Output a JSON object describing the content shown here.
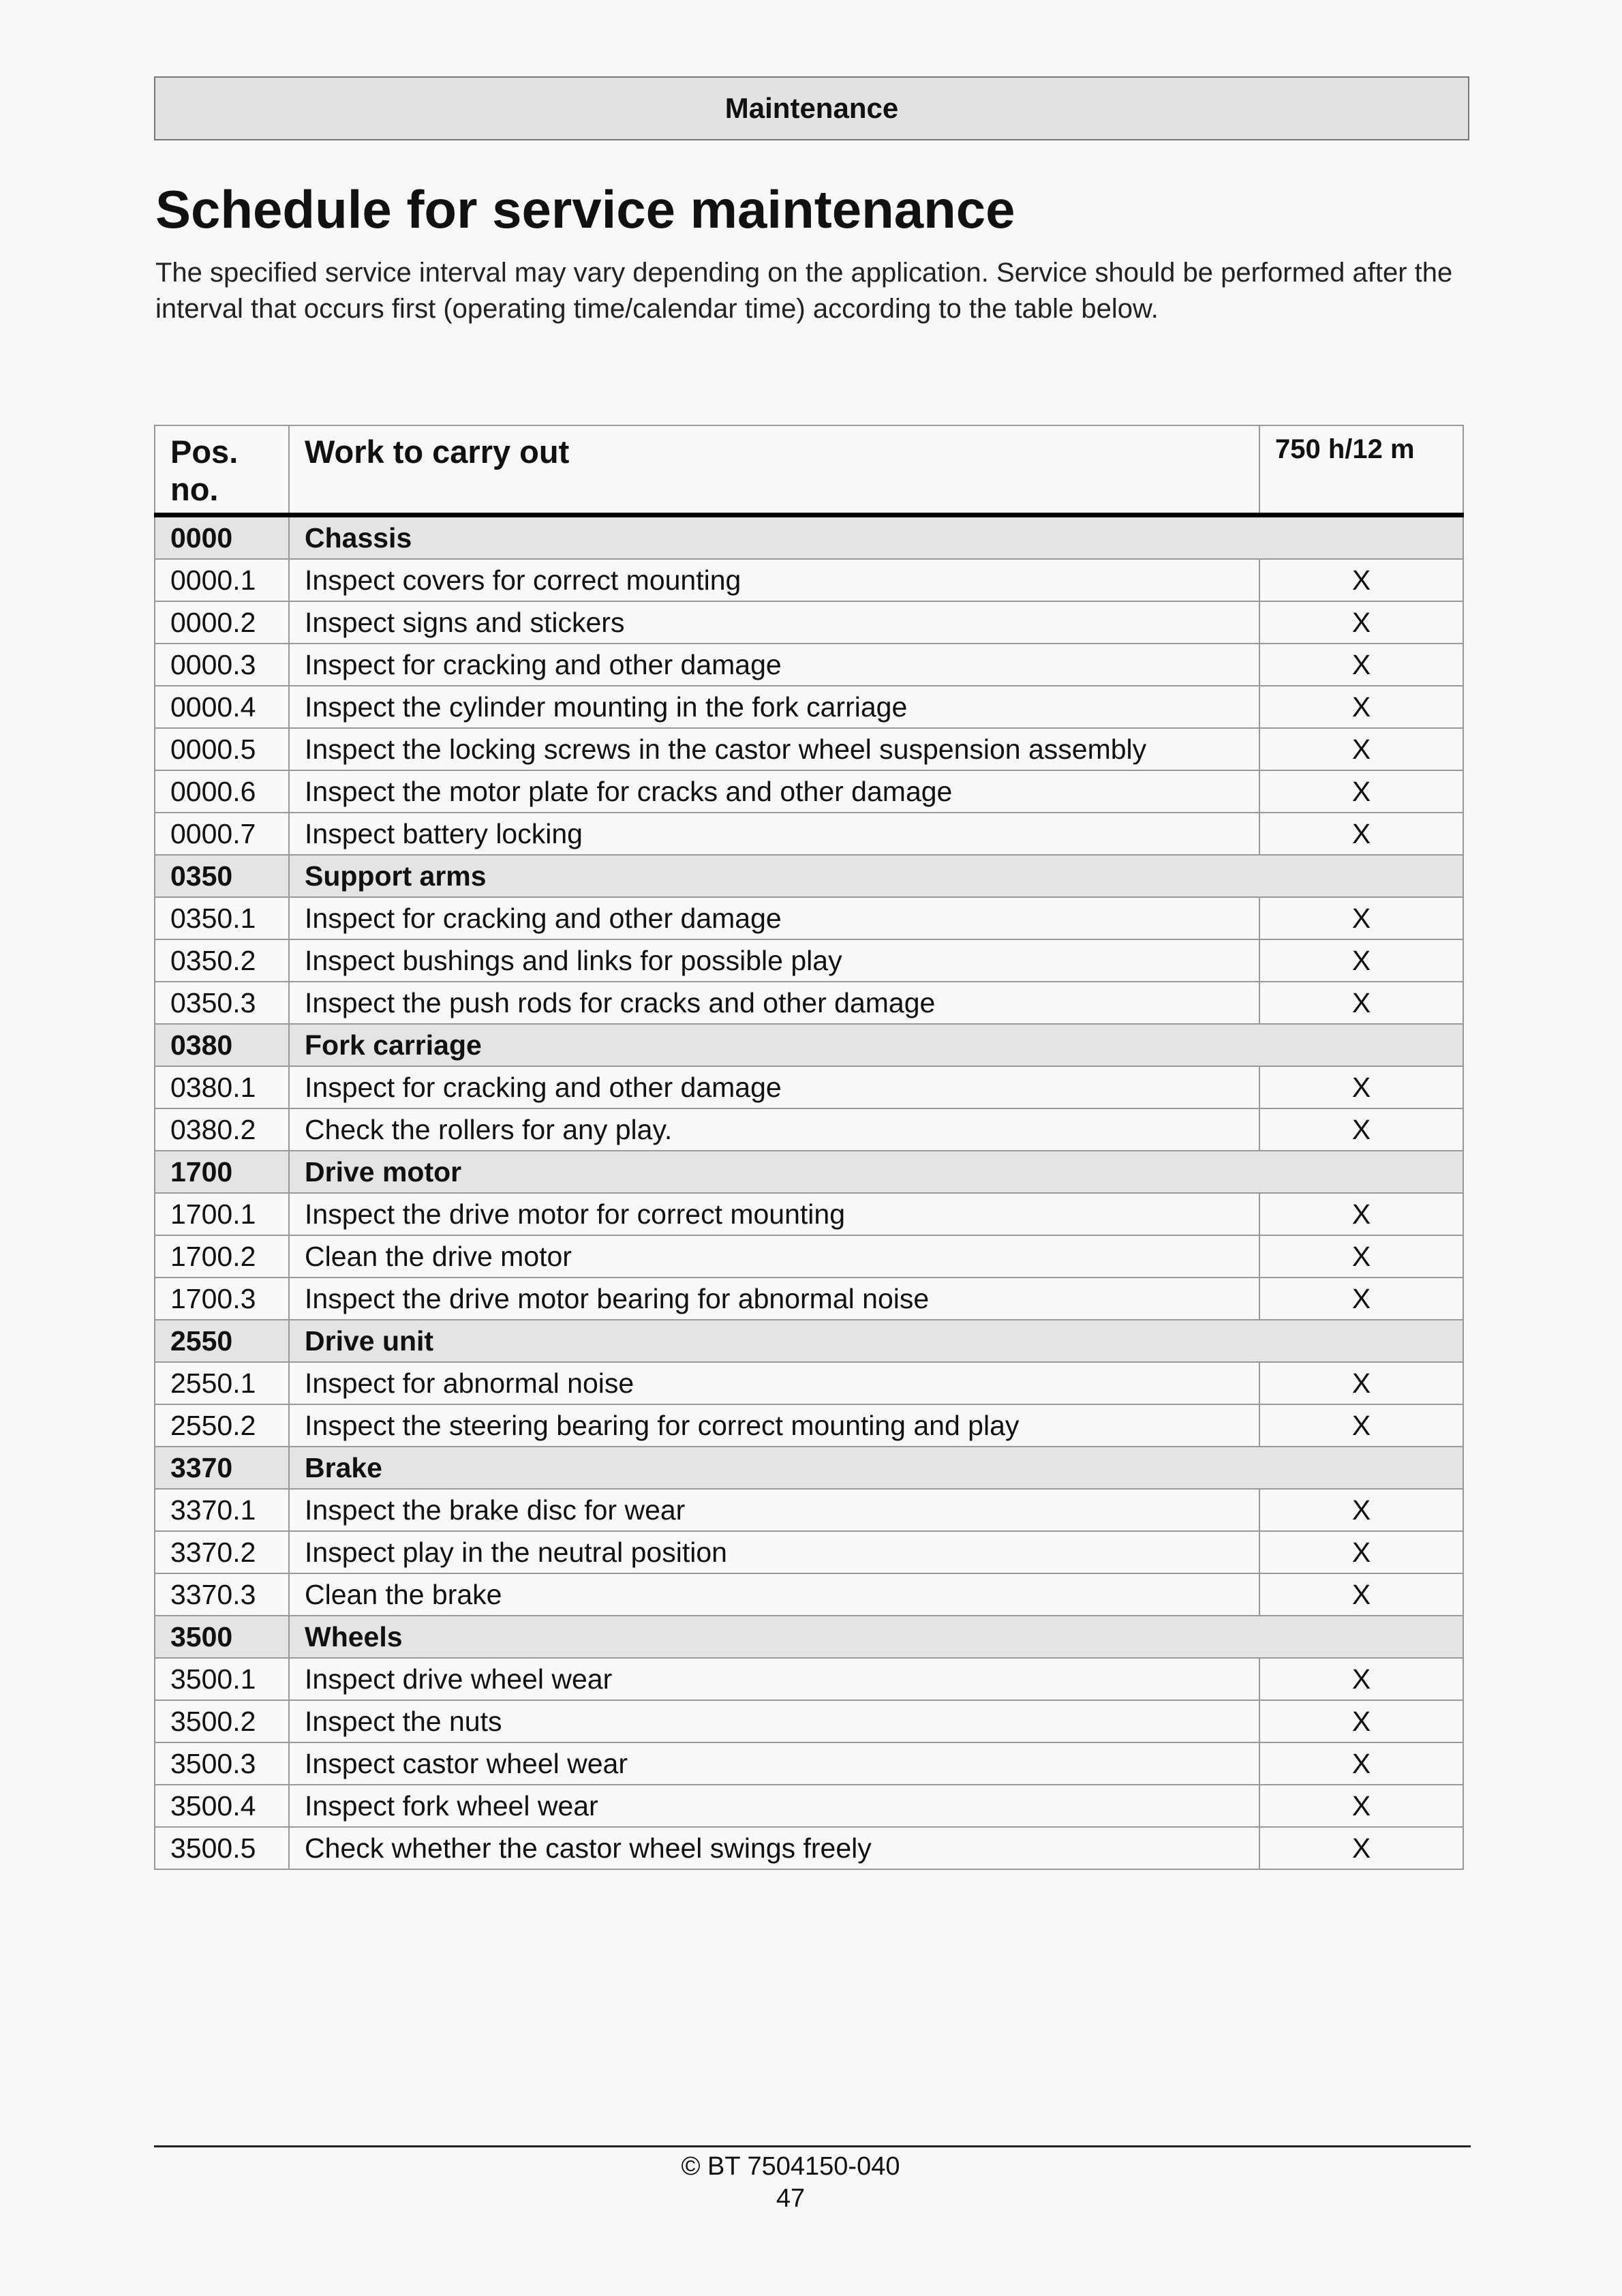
{
  "header": {
    "section": "Maintenance"
  },
  "title": "Schedule for service maintenance",
  "intro": "The specified service interval may vary depending on the application. Service should be performed after the interval that occurs first (operating time/calendar time) according to the table below.",
  "table": {
    "columns": [
      "Pos. no.",
      "Work to carry out",
      "750 h/12 m"
    ],
    "groups": [
      {
        "pos": "0000",
        "title": "Chassis",
        "items": [
          {
            "pos": "0000.1",
            "work": "Inspect covers for correct mounting",
            "mark": "X"
          },
          {
            "pos": "0000.2",
            "work": "Inspect signs and stickers",
            "mark": "X"
          },
          {
            "pos": "0000.3",
            "work": "Inspect for cracking and other damage",
            "mark": "X"
          },
          {
            "pos": "0000.4",
            "work": "Inspect the cylinder mounting in the fork carriage",
            "mark": "X"
          },
          {
            "pos": "0000.5",
            "work": "Inspect the locking screws in the castor wheel suspension assembly",
            "mark": "X"
          },
          {
            "pos": "0000.6",
            "work": "Inspect the motor plate for cracks and other damage",
            "mark": "X"
          },
          {
            "pos": "0000.7",
            "work": "Inspect battery locking",
            "mark": "X"
          }
        ]
      },
      {
        "pos": "0350",
        "title": "Support arms",
        "items": [
          {
            "pos": "0350.1",
            "work": "Inspect for cracking and other damage",
            "mark": "X"
          },
          {
            "pos": "0350.2",
            "work": "Inspect bushings and links for possible play",
            "mark": "X"
          },
          {
            "pos": "0350.3",
            "work": "Inspect the push rods for cracks and other damage",
            "mark": "X"
          }
        ]
      },
      {
        "pos": "0380",
        "title": "Fork carriage",
        "items": [
          {
            "pos": "0380.1",
            "work": "Inspect for cracking and other damage",
            "mark": "X"
          },
          {
            "pos": "0380.2",
            "work": "Check the rollers for any play.",
            "mark": "X"
          }
        ]
      },
      {
        "pos": "1700",
        "title": "Drive motor",
        "items": [
          {
            "pos": "1700.1",
            "work": "Inspect the drive motor for correct mounting",
            "mark": "X"
          },
          {
            "pos": "1700.2",
            "work": "Clean the drive motor",
            "mark": "X"
          },
          {
            "pos": "1700.3",
            "work": "Inspect the drive motor bearing for abnormal noise",
            "mark": "X"
          }
        ]
      },
      {
        "pos": "2550",
        "title": "Drive unit",
        "items": [
          {
            "pos": "2550.1",
            "work": "Inspect for abnormal noise",
            "mark": "X"
          },
          {
            "pos": "2550.2",
            "work": "Inspect the steering bearing for correct mounting and play",
            "mark": "X"
          }
        ]
      },
      {
        "pos": "3370",
        "title": "Brake",
        "items": [
          {
            "pos": "3370.1",
            "work": "Inspect the brake disc for wear",
            "mark": "X"
          },
          {
            "pos": "3370.2",
            "work": "Inspect play in the neutral position",
            "mark": "X"
          },
          {
            "pos": "3370.3",
            "work": "Clean the brake",
            "mark": "X"
          }
        ]
      },
      {
        "pos": "3500",
        "title": "Wheels",
        "items": [
          {
            "pos": "3500.1",
            "work": "Inspect drive wheel wear",
            "mark": "X"
          },
          {
            "pos": "3500.2",
            "work": "Inspect the nuts",
            "mark": "X"
          },
          {
            "pos": "3500.3",
            "work": "Inspect castor wheel wear",
            "mark": "X"
          },
          {
            "pos": "3500.4",
            "work": "Inspect fork wheel wear",
            "mark": "X"
          },
          {
            "pos": "3500.5",
            "work": "Check whether the castor wheel swings freely",
            "mark": "X"
          }
        ]
      }
    ]
  },
  "footer": {
    "copyright": "© BT 7504150-040",
    "page": "47"
  }
}
